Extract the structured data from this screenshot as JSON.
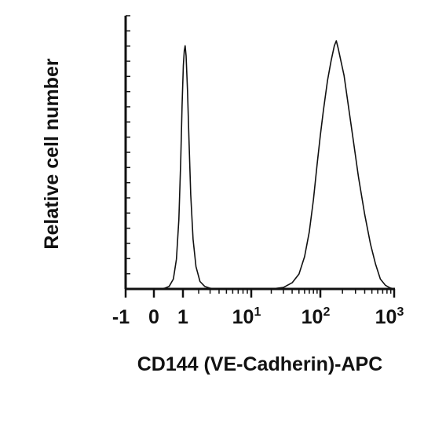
{
  "chart_data": {
    "type": "line",
    "title": "",
    "xlabel": "CD144 (VE-Cadherin)-APC",
    "ylabel": "Relative cell number",
    "x_scale": "biexponential",
    "xlim": [
      -1,
      1000
    ],
    "ylim": [
      0,
      100
    ],
    "grid": false,
    "legend": "none",
    "x_ticks": [
      {
        "value": -1,
        "base": "-1",
        "exp": ""
      },
      {
        "value": 0,
        "base": "0",
        "exp": ""
      },
      {
        "value": 1,
        "base": "1",
        "exp": ""
      },
      {
        "value": 10,
        "base": "10",
        "exp": "1"
      },
      {
        "value": 100,
        "base": "10",
        "exp": "2"
      },
      {
        "value": 1000,
        "base": "10",
        "exp": "3"
      }
    ],
    "series": [
      {
        "line_color": "#111111",
        "points": [
          [
            0.15,
            0
          ],
          [
            0.3,
            0.3
          ],
          [
            0.45,
            1
          ],
          [
            0.6,
            4
          ],
          [
            0.72,
            12
          ],
          [
            0.82,
            28
          ],
          [
            0.9,
            52
          ],
          [
            0.96,
            74
          ],
          [
            1.02,
            90
          ],
          [
            1.07,
            96
          ],
          [
            1.12,
            98
          ],
          [
            1.17,
            94
          ],
          [
            1.25,
            80
          ],
          [
            1.34,
            60
          ],
          [
            1.45,
            38
          ],
          [
            1.6,
            20
          ],
          [
            1.8,
            9
          ],
          [
            2.1,
            3
          ],
          [
            2.5,
            1
          ],
          [
            3.0,
            0.3
          ],
          [
            3.6,
            0
          ],
          [
            20,
            0
          ],
          [
            30,
            0.6
          ],
          [
            40,
            2.5
          ],
          [
            50,
            6
          ],
          [
            60,
            13
          ],
          [
            70,
            23
          ],
          [
            80,
            36
          ],
          [
            90,
            50
          ],
          [
            100,
            62
          ],
          [
            110,
            72
          ],
          [
            125,
            84
          ],
          [
            140,
            92
          ],
          [
            155,
            98
          ],
          [
            165,
            100
          ],
          [
            175,
            97
          ],
          [
            190,
            92
          ],
          [
            210,
            86
          ],
          [
            240,
            74
          ],
          [
            280,
            60
          ],
          [
            330,
            45
          ],
          [
            400,
            30
          ],
          [
            480,
            18
          ],
          [
            560,
            10
          ],
          [
            650,
            4
          ],
          [
            760,
            1.5
          ],
          [
            880,
            0.4
          ],
          [
            1000,
            0
          ]
        ]
      }
    ]
  }
}
